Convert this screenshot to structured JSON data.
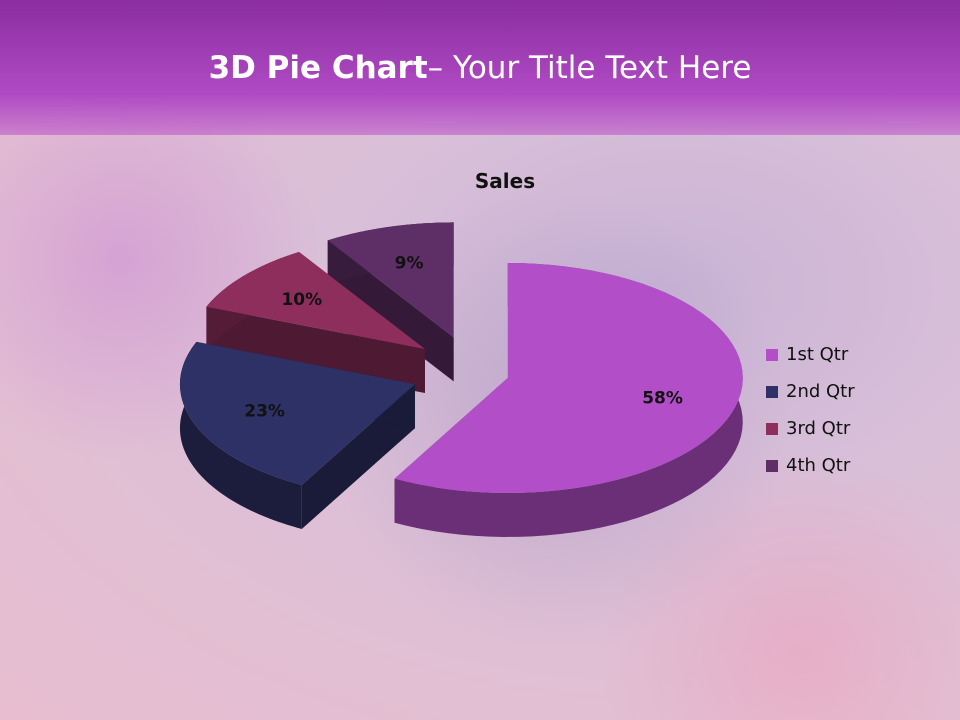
{
  "header": {
    "title_bold": "3D Pie Chart",
    "title_rest": "– Your Title Text Here"
  },
  "chart_data": {
    "type": "pie",
    "style": "3d-exploded",
    "title": "Sales",
    "categories": [
      "1st Qtr",
      "2nd Qtr",
      "3rd Qtr",
      "4th Qtr"
    ],
    "values": [
      58,
      23,
      10,
      9
    ],
    "labels": [
      "58%",
      "23%",
      "10%",
      "9%"
    ],
    "colors": [
      "#b24fc8",
      "#2e3166",
      "#8e2e5c",
      "#5e2f66"
    ],
    "legend_position": "right"
  }
}
